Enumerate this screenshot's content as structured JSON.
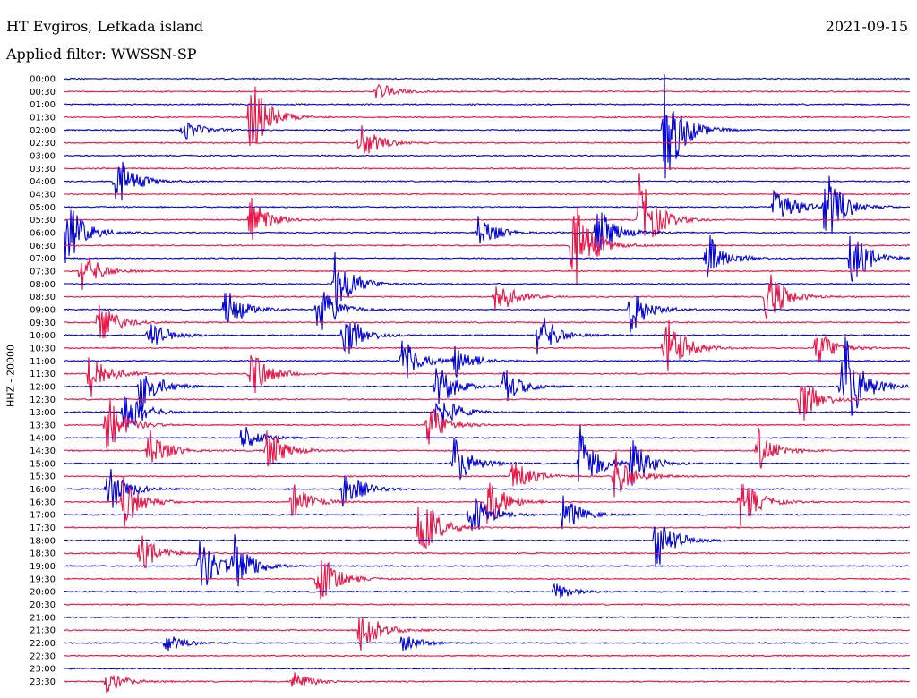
{
  "header": {
    "station": "HT Evgiros, Lefkada island",
    "filter": "Applied filter: WWSSN-SP",
    "date": "2021-09-15"
  },
  "chart_data": {
    "type": "line",
    "title": "HT Evgiros, Lefkada island",
    "subtitle": "Applied filter: WWSSN-SP",
    "ylabel": "HHZ - 20000",
    "xlabel": "",
    "time_labels": [
      "00:00",
      "00:30",
      "01:00",
      "01:30",
      "02:00",
      "02:30",
      "03:00",
      "03:30",
      "04:00",
      "04:30",
      "05:00",
      "05:30",
      "06:00",
      "06:30",
      "07:00",
      "07:30",
      "08:00",
      "08:30",
      "09:00",
      "09:30",
      "10:00",
      "10:30",
      "11:00",
      "11:30",
      "12:00",
      "12:30",
      "13:00",
      "13:30",
      "14:00",
      "14:30",
      "15:00",
      "15:30",
      "16:00",
      "16:30",
      "17:00",
      "17:30",
      "18:00",
      "18:30",
      "19:00",
      "19:30",
      "20:00",
      "20:30",
      "21:00",
      "21:30",
      "22:00",
      "22:30",
      "23:00",
      "23:30"
    ],
    "trace_colors": [
      "#0000dd",
      "#ee1144"
    ],
    "events": [
      {
        "row": 1,
        "x": 0.37,
        "amp": 0.5
      },
      {
        "row": 3,
        "x": 0.22,
        "amp": 2.2
      },
      {
        "row": 4,
        "x": 0.14,
        "amp": 0.6
      },
      {
        "row": 4,
        "x": 0.71,
        "amp": 3.2
      },
      {
        "row": 5,
        "x": 0.35,
        "amp": 1.0
      },
      {
        "row": 8,
        "x": 0.06,
        "amp": 1.6
      },
      {
        "row": 10,
        "x": 0.84,
        "amp": 1.4
      },
      {
        "row": 10,
        "x": 0.9,
        "amp": 2.0
      },
      {
        "row": 11,
        "x": 0.22,
        "amp": 1.3
      },
      {
        "row": 11,
        "x": 0.68,
        "amp": 2.4
      },
      {
        "row": 12,
        "x": 0.0,
        "amp": 2.0
      },
      {
        "row": 12,
        "x": 0.49,
        "amp": 1.0
      },
      {
        "row": 12,
        "x": 0.63,
        "amp": 1.5
      },
      {
        "row": 13,
        "x": 0.6,
        "amp": 3.0
      },
      {
        "row": 14,
        "x": 0.76,
        "amp": 1.4
      },
      {
        "row": 14,
        "x": 0.93,
        "amp": 1.6
      },
      {
        "row": 15,
        "x": 0.02,
        "amp": 1.2
      },
      {
        "row": 16,
        "x": 0.32,
        "amp": 1.8
      },
      {
        "row": 17,
        "x": 0.51,
        "amp": 1.1
      },
      {
        "row": 17,
        "x": 0.83,
        "amp": 1.6
      },
      {
        "row": 18,
        "x": 0.19,
        "amp": 1.2
      },
      {
        "row": 18,
        "x": 0.3,
        "amp": 1.4
      },
      {
        "row": 18,
        "x": 0.67,
        "amp": 1.3
      },
      {
        "row": 19,
        "x": 0.04,
        "amp": 1.2
      },
      {
        "row": 20,
        "x": 0.1,
        "amp": 0.9
      },
      {
        "row": 20,
        "x": 0.33,
        "amp": 1.4
      },
      {
        "row": 20,
        "x": 0.56,
        "amp": 1.4
      },
      {
        "row": 21,
        "x": 0.71,
        "amp": 2.0
      },
      {
        "row": 21,
        "x": 0.89,
        "amp": 1.0
      },
      {
        "row": 22,
        "x": 0.4,
        "amp": 1.2
      },
      {
        "row": 22,
        "x": 0.46,
        "amp": 1.0
      },
      {
        "row": 23,
        "x": 0.03,
        "amp": 1.4
      },
      {
        "row": 23,
        "x": 0.22,
        "amp": 1.4
      },
      {
        "row": 24,
        "x": 0.09,
        "amp": 1.4
      },
      {
        "row": 24,
        "x": 0.44,
        "amp": 1.3
      },
      {
        "row": 24,
        "x": 0.52,
        "amp": 1.0
      },
      {
        "row": 24,
        "x": 0.92,
        "amp": 3.2
      },
      {
        "row": 25,
        "x": 0.87,
        "amp": 1.4
      },
      {
        "row": 26,
        "x": 0.07,
        "amp": 1.4
      },
      {
        "row": 26,
        "x": 0.44,
        "amp": 1.2
      },
      {
        "row": 27,
        "x": 0.05,
        "amp": 1.6
      },
      {
        "row": 27,
        "x": 0.43,
        "amp": 1.2
      },
      {
        "row": 28,
        "x": 0.21,
        "amp": 0.7
      },
      {
        "row": 29,
        "x": 0.1,
        "amp": 1.2
      },
      {
        "row": 29,
        "x": 0.24,
        "amp": 1.2
      },
      {
        "row": 29,
        "x": 0.82,
        "amp": 1.2
      },
      {
        "row": 30,
        "x": 0.46,
        "amp": 1.4
      },
      {
        "row": 30,
        "x": 0.61,
        "amp": 2.0
      },
      {
        "row": 30,
        "x": 0.67,
        "amp": 1.4
      },
      {
        "row": 31,
        "x": 0.53,
        "amp": 1.0
      },
      {
        "row": 31,
        "x": 0.65,
        "amp": 1.4
      },
      {
        "row": 32,
        "x": 0.05,
        "amp": 1.5
      },
      {
        "row": 32,
        "x": 0.33,
        "amp": 1.2
      },
      {
        "row": 33,
        "x": 0.07,
        "amp": 1.4
      },
      {
        "row": 33,
        "x": 0.27,
        "amp": 1.0
      },
      {
        "row": 33,
        "x": 0.5,
        "amp": 1.5
      },
      {
        "row": 33,
        "x": 0.8,
        "amp": 1.4
      },
      {
        "row": 34,
        "x": 0.48,
        "amp": 1.3
      },
      {
        "row": 34,
        "x": 0.59,
        "amp": 1.0
      },
      {
        "row": 35,
        "x": 0.42,
        "amp": 2.0
      },
      {
        "row": 36,
        "x": 0.7,
        "amp": 1.6
      },
      {
        "row": 37,
        "x": 0.09,
        "amp": 1.0
      },
      {
        "row": 38,
        "x": 0.16,
        "amp": 1.6
      },
      {
        "row": 38,
        "x": 0.2,
        "amp": 1.6
      },
      {
        "row": 39,
        "x": 0.3,
        "amp": 1.6
      },
      {
        "row": 40,
        "x": 0.58,
        "amp": 0.5
      },
      {
        "row": 43,
        "x": 0.35,
        "amp": 1.5
      },
      {
        "row": 44,
        "x": 0.12,
        "amp": 0.5
      },
      {
        "row": 44,
        "x": 0.4,
        "amp": 0.5
      },
      {
        "row": 47,
        "x": 0.05,
        "amp": 0.6
      },
      {
        "row": 47,
        "x": 0.27,
        "amp": 0.6
      }
    ]
  }
}
